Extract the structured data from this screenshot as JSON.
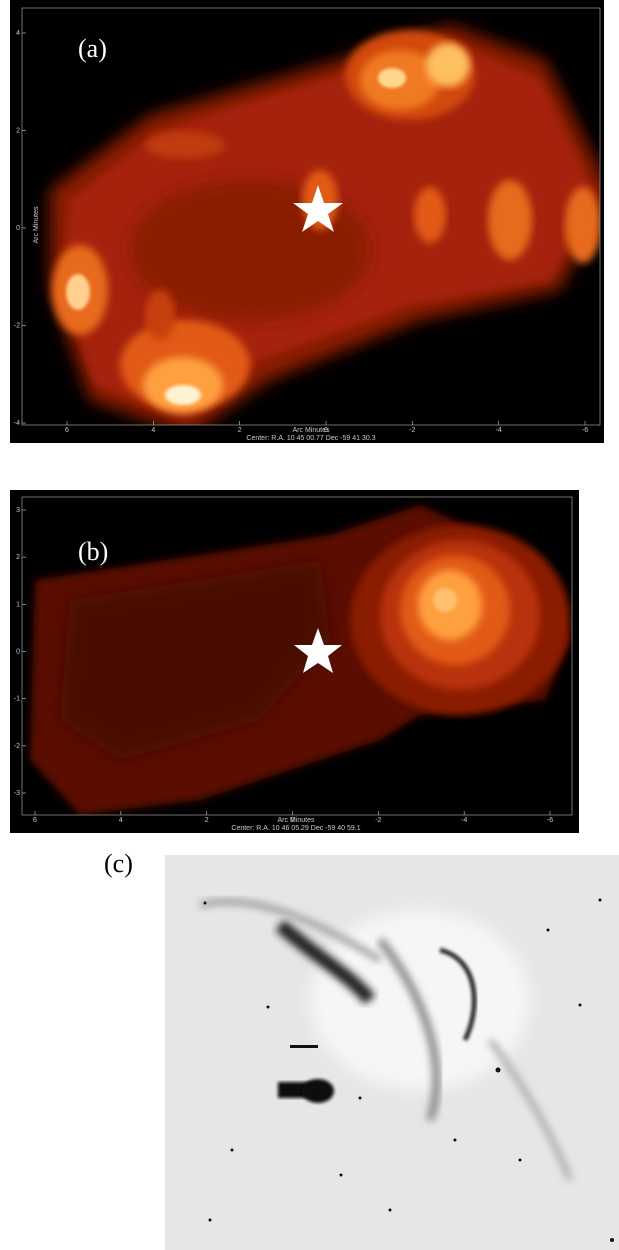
{
  "panels": [
    {
      "label": "(a)",
      "y_axis": {
        "title": "Arc Minutes",
        "ticks": [
          "4",
          "2",
          "0",
          "-2",
          "-4"
        ]
      },
      "x_axis": {
        "title": "Arc Minutes",
        "ticks": [
          "6",
          "4",
          "2",
          "0",
          "-2",
          "-4",
          "-6"
        ]
      },
      "center": "Center:  R.A. 10 45 00.77    Dec  -59 41 30.3"
    },
    {
      "label": "(b)",
      "y_axis": {
        "ticks": [
          "3",
          "2",
          "1",
          "0",
          "-1",
          "-2",
          "-3"
        ]
      },
      "x_axis": {
        "title": "Arc Minutes",
        "ticks": [
          "6",
          "4",
          "2",
          "0",
          "-2",
          "-4",
          "-6"
        ]
      },
      "center": "Center:  R.A. 10 46 05.29    Dec  -59 40 59.1"
    },
    {
      "label": "(c)"
    }
  ]
}
